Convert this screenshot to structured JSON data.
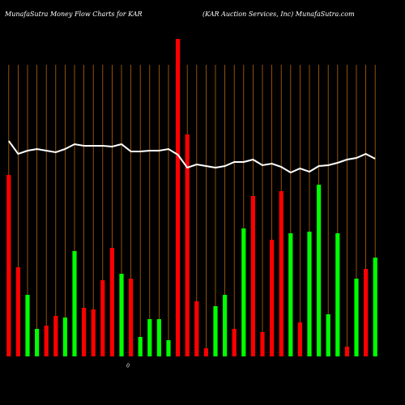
{
  "chart_data": {
    "type": "bar",
    "title": "MunafaSutra  Money  Flow  Charts for KAR",
    "subtitle": "(KAR Auction  Services,  Inc) MunafaSutra.com",
    "annotation": "0",
    "categories": [
      null,
      null,
      null,
      null,
      null,
      null,
      null,
      null,
      null,
      null,
      null,
      null,
      null,
      null,
      null,
      null,
      null,
      null,
      null,
      null,
      null,
      null,
      null,
      null,
      null,
      null,
      null,
      null,
      null,
      null,
      null,
      null,
      null,
      null,
      null,
      null,
      null,
      null,
      null,
      null
    ],
    "values": [
      56,
      27.5,
      19,
      8.5,
      9.5,
      12.5,
      12,
      32.5,
      15,
      14.5,
      23.5,
      33.5,
      25.5,
      24,
      6,
      11.5,
      11.5,
      5,
      98,
      68.5,
      17,
      2.5,
      15.5,
      19,
      8.5,
      39.5,
      49.5,
      7.5,
      36,
      51,
      38,
      10.5,
      38.5,
      53,
      13,
      38,
      3,
      24,
      27,
      30.5
    ],
    "colors": [
      "#ff0000",
      "#ff0000",
      "#00ff00",
      "#00ff00",
      "#ff0000",
      "#ff0000",
      "#00ff00",
      "#00ff00",
      "#ff0000",
      "#ff0000",
      "#ff0000",
      "#ff0000",
      "#00ff00",
      "#ff0000",
      "#00ff00",
      "#00ff00",
      "#00ff00",
      "#00ff00",
      "#ff0000",
      "#ff0000",
      "#ff0000",
      "#ff0000",
      "#00ff00",
      "#00ff00",
      "#ff0000",
      "#00ff00",
      "#ff0000",
      "#ff0000",
      "#ff0000",
      "#ff0000",
      "#00ff00",
      "#ff0000",
      "#00ff00",
      "#00ff00",
      "#00ff00",
      "#00ff00",
      "#ff0000",
      "#00ff00",
      "#ff0000",
      "#00ff00"
    ],
    "line": {
      "color": "#ffffff",
      "values": [
        66.5,
        62.5,
        63.5,
        64,
        63.5,
        63,
        64,
        65.5,
        65,
        65,
        65,
        64.75,
        65.5,
        63.25,
        63.25,
        63.5,
        63.5,
        64,
        62.25,
        58.25,
        59.25,
        58.75,
        58.25,
        58.75,
        60,
        60,
        60.75,
        59,
        59.5,
        58.5,
        56.75,
        58,
        57,
        58.75,
        59,
        59.75,
        60.75,
        61.25,
        62.5,
        61
      ]
    },
    "ylim": [
      0,
      100
    ],
    "grid": true,
    "grid_color": "#b8650a"
  }
}
